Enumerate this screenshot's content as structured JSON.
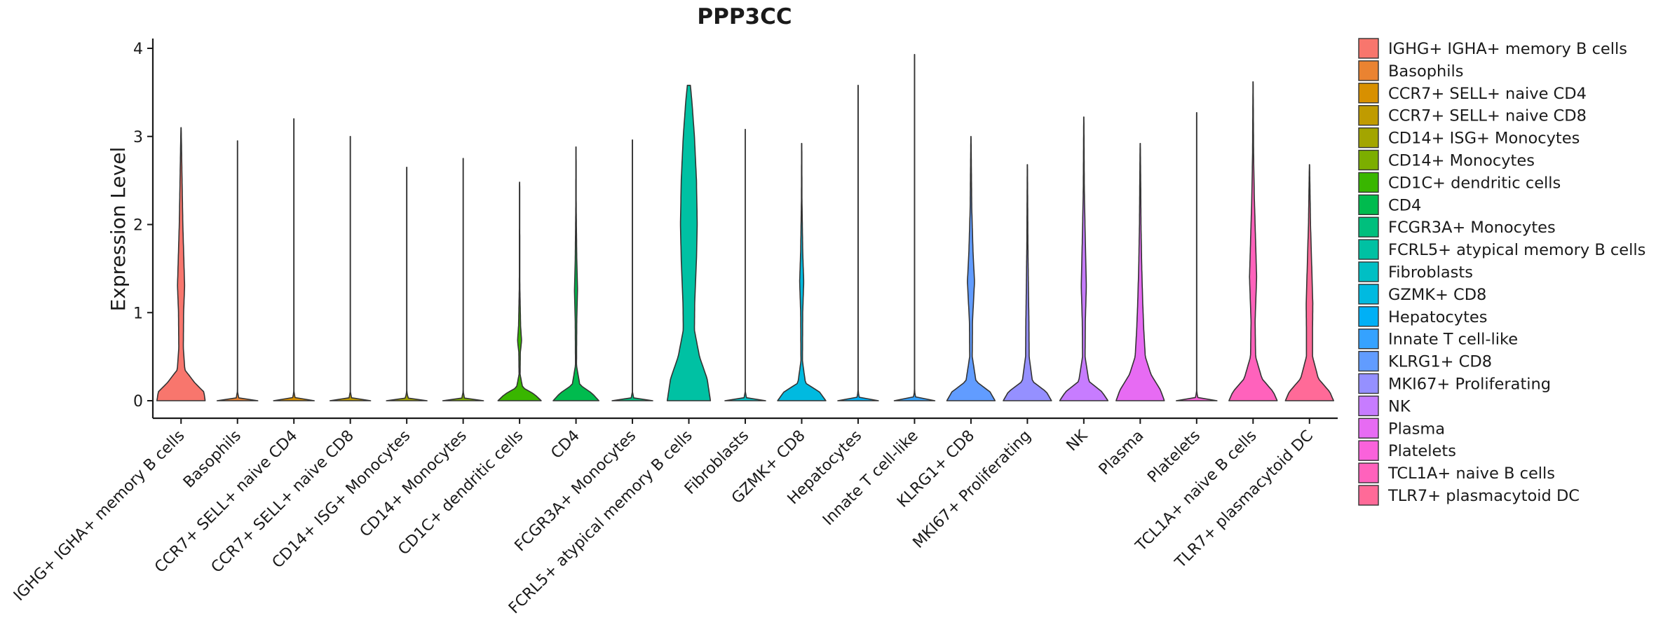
{
  "chart_data": {
    "type": "violin",
    "title": "PPP3CC",
    "xlabel": "",
    "ylabel": "Expression Level",
    "ylim": [
      -0.2,
      4.15
    ],
    "yticks": [
      0,
      1,
      2,
      3,
      4
    ],
    "grid": false,
    "legend_position": "right",
    "categories": [
      "IGHG+ IGHA+ memory B cells",
      "Basophils",
      "CCR7+ SELL+ naive CD4",
      "CCR7+ SELL+ naive CD8",
      "CD14+ ISG+ Monocytes",
      "CD14+ Monocytes",
      "CD1C+ dendritic cells",
      "CD4",
      "FCGR3A+ Monocytes",
      "FCRL5+ atypical memory B cells",
      "Fibroblasts",
      "GZMK+ CD8",
      "Hepatocytes",
      "Innate T cell-like",
      "KLRG1+ CD8",
      "MKI67+ Proliferating",
      "NK",
      "Plasma",
      "Platelets",
      "TCL1A+ naive B cells",
      "TLR7+ plasmacytoid DC"
    ],
    "legend_labels": [
      " IGHG+ IGHA+ memory B cells",
      "Basophils",
      "CCR7+ SELL+ naive CD4",
      "CCR7+ SELL+ naive CD8",
      "CD14+ ISG+ Monocytes",
      "CD14+ Monocytes",
      "CD1C+ dendritic cells",
      "CD4",
      "FCGR3A+ Monocytes",
      "FCRL5+ atypical memory B cells",
      "Fibroblasts",
      "GZMK+ CD8",
      "Hepatocytes",
      "Innate T cell-like",
      "KLRG1+ CD8",
      "MKI67+ Proliferating",
      "NK",
      "Plasma",
      "Platelets",
      "TCL1A+ naive B cells",
      "TLR7+ plasmacytoid DC"
    ],
    "colors": [
      "#F8766D",
      "#EA8331",
      "#D89000",
      "#C09B00",
      "#A3A500",
      "#7CAE00",
      "#39B600",
      "#00BB4E",
      "#00BF7D",
      "#00C1A3",
      "#00BFC4",
      "#00BAE0",
      "#00B0F6",
      "#35A2FF",
      "#619CFF",
      "#9590FF",
      "#C77CFF",
      "#E76BF3",
      "#FA62DB",
      "#FF62BC",
      "#FF6A98"
    ],
    "series": [
      {
        "name": "IGHG+ IGHA+ memory B cells",
        "max": 3.1,
        "profile": [
          [
            0,
            0.95
          ],
          [
            0.1,
            0.9
          ],
          [
            0.2,
            0.55
          ],
          [
            0.35,
            0.15
          ],
          [
            0.6,
            0.09
          ],
          [
            1.0,
            0.1
          ],
          [
            1.3,
            0.14
          ],
          [
            1.6,
            0.11
          ],
          [
            2.0,
            0.07
          ],
          [
            2.5,
            0.04
          ],
          [
            3.1,
            0.005
          ]
        ]
      },
      {
        "name": "Basophils",
        "max": 2.95,
        "profile": [
          [
            0,
            0.8
          ],
          [
            0.03,
            0.05
          ],
          [
            0.1,
            0.004
          ],
          [
            2.95,
            0.004
          ]
        ]
      },
      {
        "name": "CCR7+ SELL+ naive CD4",
        "max": 3.2,
        "profile": [
          [
            0,
            0.8
          ],
          [
            0.03,
            0.05
          ],
          [
            0.1,
            0.004
          ],
          [
            3.2,
            0.004
          ]
        ]
      },
      {
        "name": "CCR7+ SELL+ naive CD8",
        "max": 3.0,
        "profile": [
          [
            0,
            0.8
          ],
          [
            0.03,
            0.05
          ],
          [
            0.1,
            0.004
          ],
          [
            3.0,
            0.004
          ]
        ]
      },
      {
        "name": "CD14+ ISG+ Monocytes",
        "max": 2.65,
        "profile": [
          [
            0,
            0.8
          ],
          [
            0.03,
            0.05
          ],
          [
            0.1,
            0.004
          ],
          [
            2.65,
            0.004
          ]
        ]
      },
      {
        "name": "CD14+ Monocytes",
        "max": 2.75,
        "profile": [
          [
            0,
            0.8
          ],
          [
            0.03,
            0.05
          ],
          [
            0.1,
            0.004
          ],
          [
            2.75,
            0.004
          ]
        ]
      },
      {
        "name": "CD1C+ dendritic cells",
        "max": 2.48,
        "profile": [
          [
            0,
            0.85
          ],
          [
            0.07,
            0.6
          ],
          [
            0.15,
            0.12
          ],
          [
            0.3,
            0.02
          ],
          [
            0.55,
            0.03
          ],
          [
            0.68,
            0.08
          ],
          [
            0.85,
            0.04
          ],
          [
            1.3,
            0.01
          ],
          [
            2.48,
            0.004
          ]
        ]
      },
      {
        "name": "CD4",
        "max": 2.88,
        "profile": [
          [
            0,
            0.9
          ],
          [
            0.08,
            0.65
          ],
          [
            0.18,
            0.15
          ],
          [
            0.4,
            0.02
          ],
          [
            0.9,
            0.03
          ],
          [
            1.25,
            0.06
          ],
          [
            1.6,
            0.03
          ],
          [
            2.2,
            0.008
          ],
          [
            2.88,
            0.004
          ]
        ]
      },
      {
        "name": "FCGR3A+ Monocytes",
        "max": 2.96,
        "profile": [
          [
            0,
            0.8
          ],
          [
            0.03,
            0.05
          ],
          [
            0.1,
            0.004
          ],
          [
            2.96,
            0.004
          ]
        ]
      },
      {
        "name": "FCRL5+ atypical memory B cells",
        "max": 3.58,
        "profile": [
          [
            0,
            0.85
          ],
          [
            0.25,
            0.72
          ],
          [
            0.5,
            0.42
          ],
          [
            0.8,
            0.22
          ],
          [
            1.1,
            0.23
          ],
          [
            1.6,
            0.3
          ],
          [
            2.0,
            0.33
          ],
          [
            2.5,
            0.3
          ],
          [
            3.0,
            0.22
          ],
          [
            3.4,
            0.12
          ],
          [
            3.58,
            0.06
          ]
        ]
      },
      {
        "name": "Fibroblasts",
        "max": 3.08,
        "profile": [
          [
            0,
            0.8
          ],
          [
            0.03,
            0.05
          ],
          [
            0.1,
            0.004
          ],
          [
            3.08,
            0.004
          ]
        ]
      },
      {
        "name": "GZMK+ CD8",
        "max": 2.92,
        "profile": [
          [
            0,
            0.95
          ],
          [
            0.1,
            0.7
          ],
          [
            0.2,
            0.15
          ],
          [
            0.45,
            0.03
          ],
          [
            1.0,
            0.04
          ],
          [
            1.35,
            0.08
          ],
          [
            1.7,
            0.04
          ],
          [
            2.3,
            0.01
          ],
          [
            2.92,
            0.004
          ]
        ]
      },
      {
        "name": "Hepatocytes",
        "max": 3.58,
        "profile": [
          [
            0,
            0.8
          ],
          [
            0.03,
            0.05
          ],
          [
            0.1,
            0.004
          ],
          [
            3.58,
            0.004
          ]
        ]
      },
      {
        "name": "Innate T cell-like",
        "max": 3.93,
        "profile": [
          [
            0,
            0.8
          ],
          [
            0.03,
            0.05
          ],
          [
            0.1,
            0.004
          ],
          [
            3.93,
            0.004
          ]
        ]
      },
      {
        "name": "KLRG1+ CD8",
        "max": 3.0,
        "profile": [
          [
            0,
            0.95
          ],
          [
            0.1,
            0.75
          ],
          [
            0.22,
            0.2
          ],
          [
            0.5,
            0.05
          ],
          [
            0.9,
            0.06
          ],
          [
            1.35,
            0.14
          ],
          [
            1.7,
            0.08
          ],
          [
            2.2,
            0.03
          ],
          [
            3.0,
            0.004
          ]
        ]
      },
      {
        "name": "MKI67+ Proliferating",
        "max": 2.68,
        "profile": [
          [
            0,
            0.95
          ],
          [
            0.1,
            0.75
          ],
          [
            0.22,
            0.2
          ],
          [
            0.5,
            0.07
          ],
          [
            0.9,
            0.06
          ],
          [
            1.3,
            0.04
          ],
          [
            1.8,
            0.02
          ],
          [
            2.68,
            0.004
          ]
        ]
      },
      {
        "name": "NK",
        "max": 3.22,
        "profile": [
          [
            0,
            0.95
          ],
          [
            0.1,
            0.72
          ],
          [
            0.22,
            0.2
          ],
          [
            0.5,
            0.05
          ],
          [
            0.9,
            0.06
          ],
          [
            1.3,
            0.1
          ],
          [
            1.8,
            0.06
          ],
          [
            2.4,
            0.02
          ],
          [
            3.22,
            0.004
          ]
        ]
      },
      {
        "name": "Plasma",
        "max": 2.92,
        "profile": [
          [
            0,
            0.95
          ],
          [
            0.12,
            0.8
          ],
          [
            0.3,
            0.42
          ],
          [
            0.5,
            0.2
          ],
          [
            0.8,
            0.14
          ],
          [
            1.1,
            0.1
          ],
          [
            1.5,
            0.06
          ],
          [
            2.0,
            0.03
          ],
          [
            2.4,
            0.02
          ],
          [
            2.92,
            0.004
          ]
        ]
      },
      {
        "name": "Platelets",
        "max": 3.27,
        "profile": [
          [
            0,
            0.8
          ],
          [
            0.03,
            0.05
          ],
          [
            0.1,
            0.004
          ],
          [
            3.27,
            0.004
          ]
        ]
      },
      {
        "name": "TCL1A+ naive B cells",
        "max": 3.62,
        "profile": [
          [
            0,
            0.95
          ],
          [
            0.1,
            0.8
          ],
          [
            0.25,
            0.35
          ],
          [
            0.5,
            0.1
          ],
          [
            0.9,
            0.08
          ],
          [
            1.4,
            0.14
          ],
          [
            1.8,
            0.1
          ],
          [
            2.3,
            0.05
          ],
          [
            2.8,
            0.02
          ],
          [
            3.62,
            0.004
          ]
        ]
      },
      {
        "name": "TLR7+ plasmacytoid DC",
        "max": 2.68,
        "profile": [
          [
            0,
            0.95
          ],
          [
            0.1,
            0.8
          ],
          [
            0.25,
            0.35
          ],
          [
            0.5,
            0.12
          ],
          [
            0.8,
            0.12
          ],
          [
            1.1,
            0.13
          ],
          [
            1.5,
            0.09
          ],
          [
            2.0,
            0.04
          ],
          [
            2.68,
            0.004
          ]
        ]
      }
    ]
  }
}
